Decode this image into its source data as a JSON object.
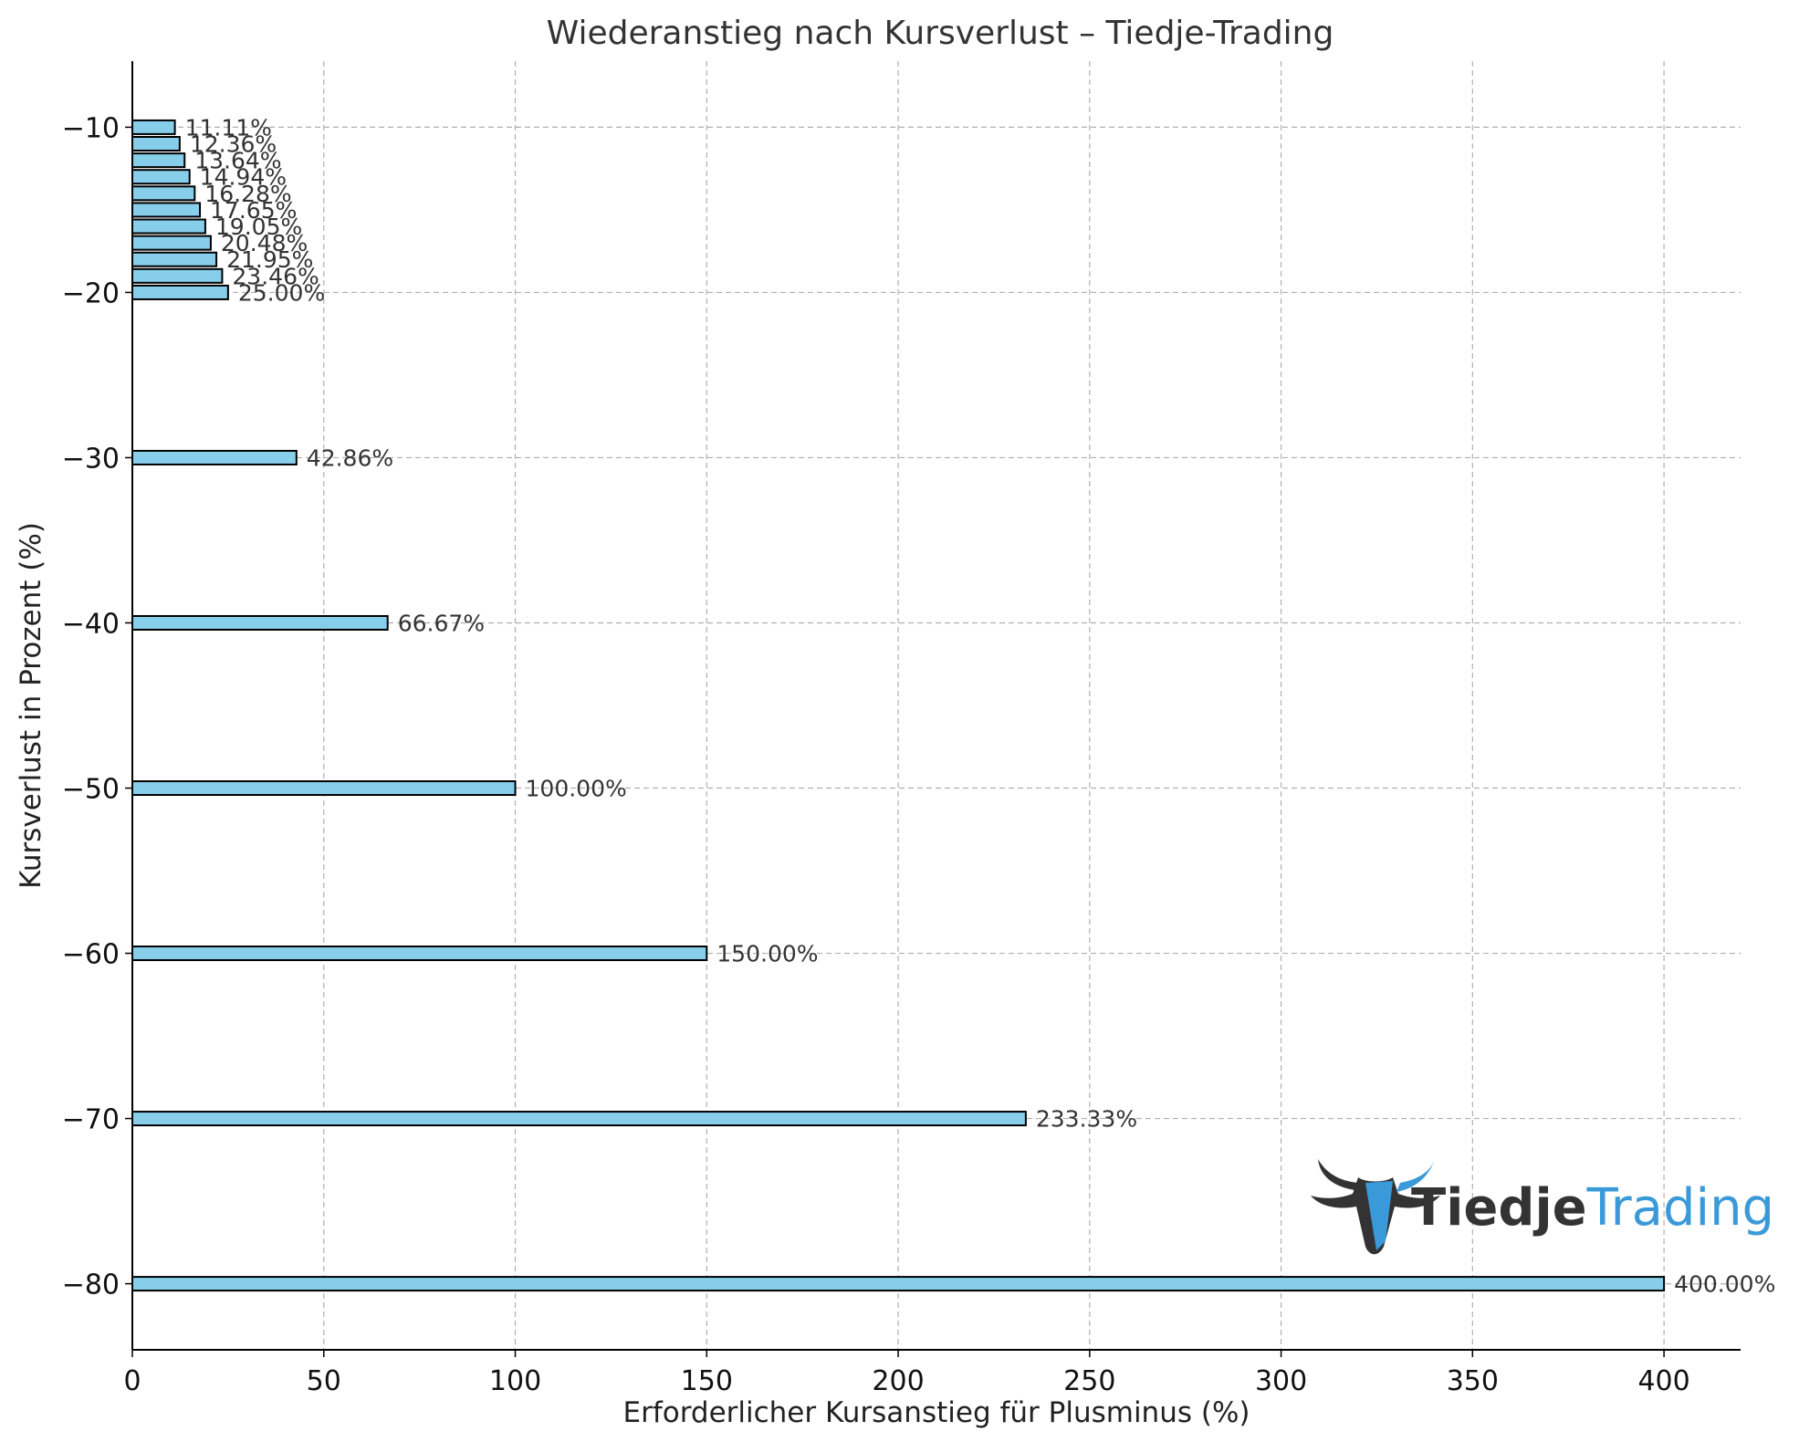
{
  "chart_data": {
    "type": "bar",
    "orientation": "horizontal",
    "title": "Wiederanstieg nach Kursverlust – Tiedje-Trading",
    "xlabel": "Erforderlicher Kursanstieg für Plusminus (%)",
    "ylabel": "Kursverlust in Prozent (%)",
    "xlim": [
      0,
      420
    ],
    "ylim": [
      -84,
      -6
    ],
    "xticks": [
      0,
      50,
      100,
      150,
      200,
      250,
      300,
      350,
      400
    ],
    "xtick_labels": [
      "0",
      "50",
      "100",
      "150",
      "200",
      "250",
      "300",
      "350",
      "400"
    ],
    "yticks": [
      -80,
      -70,
      -60,
      -50,
      -40,
      -30,
      -20,
      -10
    ],
    "ytick_labels": [
      "−80",
      "−70",
      "−60",
      "−50",
      "−40",
      "−30",
      "−20",
      "−10"
    ],
    "grid": true,
    "bar_color": "#87ceeb",
    "edge_color": "#000000",
    "categories": [
      -80,
      -70,
      -60,
      -50,
      -40,
      -30,
      -20,
      -19,
      -18,
      -17,
      -16,
      -15,
      -14,
      -13,
      -12,
      -11,
      -10
    ],
    "values": [
      400.0,
      233.33,
      150.0,
      100.0,
      66.67,
      42.86,
      25.0,
      23.46,
      21.95,
      20.48,
      19.05,
      17.65,
      16.28,
      14.94,
      13.64,
      12.36,
      11.11
    ],
    "data_labels": [
      "400.00%",
      "233.33%",
      "150.00%",
      "100.00%",
      "66.67%",
      "42.86%",
      "25.00%",
      "23.46%",
      "21.95%",
      "20.48%",
      "19.05%",
      "17.65%",
      "16.28%",
      "14.94%",
      "13.64%",
      "12.36%",
      "11.11%"
    ]
  },
  "logo": {
    "part1": "Tiedje",
    "part2": "Trading",
    "color_dark": "#333333",
    "color_blue": "#3a9ad9",
    "icon": "bull-head-icon"
  }
}
